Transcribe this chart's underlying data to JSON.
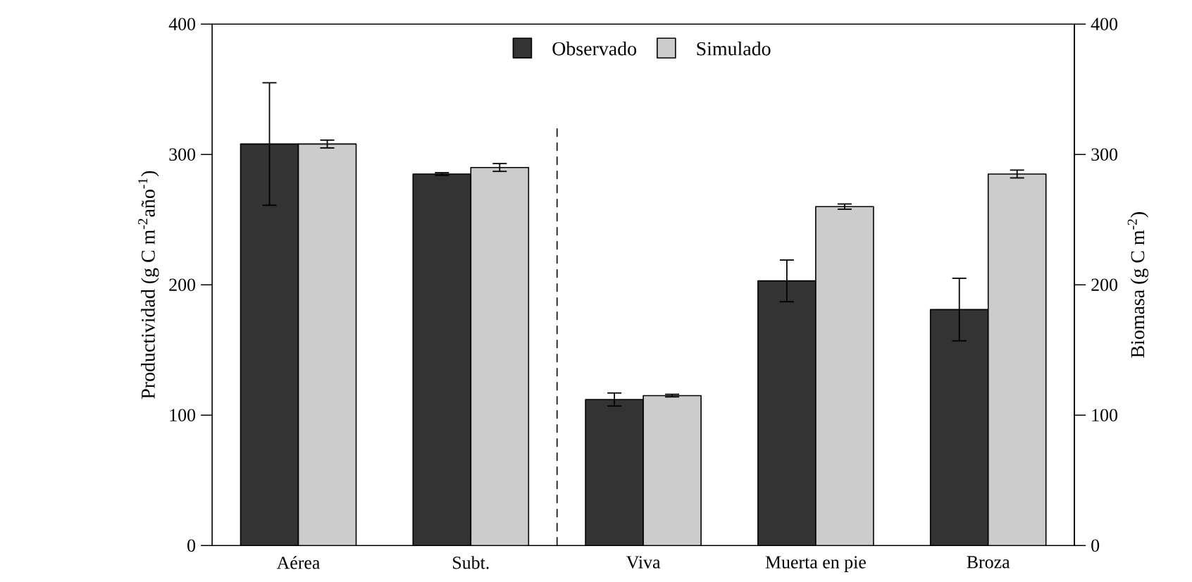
{
  "chart_data": {
    "type": "bar",
    "categories": [
      "Aérea",
      "Subt.",
      "Viva",
      "Muerta en pie",
      "Broza"
    ],
    "ylabel": "Productividad (g C m$^{-2}$año$^{-1}$)",
    "y2label": "Biomasa (g C m$^{-2}$)",
    "series": [
      {
        "name": "Observado",
        "color": "#333333",
        "values": [
          308,
          285,
          112,
          203,
          181
        ],
        "errors": [
          47,
          1,
          5,
          16,
          24
        ]
      },
      {
        "name": "Simulado",
        "color": "#cccccc",
        "values": [
          308,
          290,
          115,
          260,
          285
        ],
        "errors": [
          3,
          3,
          1,
          2,
          3
        ]
      }
    ],
    "ylim": [
      0,
      400
    ],
    "yticks": [
      0,
      100,
      200,
      300,
      400
    ],
    "y2lim": [
      0,
      400
    ],
    "y2ticks": [
      0,
      100,
      200,
      300,
      400
    ],
    "legend": "top"
  }
}
